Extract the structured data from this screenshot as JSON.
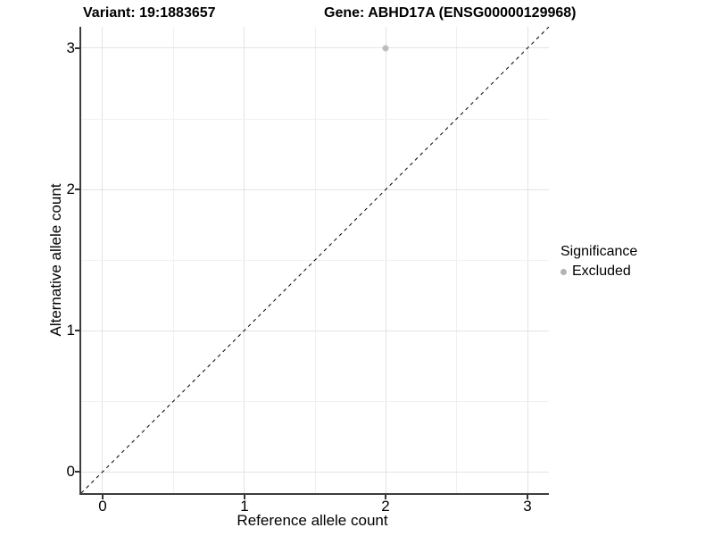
{
  "header": {
    "variant_title": "Variant: 19:1883657",
    "gene_title": "Gene: ABHD17A (ENSG00000129968)"
  },
  "axes": {
    "x": {
      "label": "Reference allele count",
      "ticks": [
        "0",
        "1",
        "2",
        "3"
      ]
    },
    "y": {
      "label": "Alternative allele count",
      "ticks": [
        "0",
        "1",
        "2",
        "3"
      ]
    }
  },
  "legend": {
    "title": "Significance",
    "items": [
      {
        "label": "Excluded",
        "color": "#b3b3b3"
      }
    ]
  },
  "colors": {
    "axis_line": "#3d3d3d",
    "grid_major": "#e3e3e3",
    "grid_minor": "#f0f0f0",
    "identity_line": "#000000",
    "point": "#bdbdbd"
  },
  "chart_data": {
    "type": "scatter",
    "title": "Variant: 19:1883657 | Gene: ABHD17A (ENSG00000129968)",
    "xlabel": "Reference allele count",
    "ylabel": "Alternative allele count",
    "xlim": [
      -0.15,
      3.15
    ],
    "ylim": [
      -0.15,
      3.15
    ],
    "x_ticks": [
      0,
      1,
      2,
      3
    ],
    "y_ticks": [
      0,
      1,
      2,
      3
    ],
    "grid": "major at integers, minor at 0.5 steps",
    "legend_position": "right",
    "series": [
      {
        "name": "Excluded",
        "color": "#bdbdbd",
        "points": [
          {
            "x": 2,
            "y": 3
          }
        ]
      }
    ],
    "reference_line": {
      "kind": "identity y=x",
      "style": "dashed",
      "color": "#000000",
      "from": [
        -0.15,
        -0.15
      ],
      "to": [
        3.15,
        3.15
      ]
    }
  }
}
